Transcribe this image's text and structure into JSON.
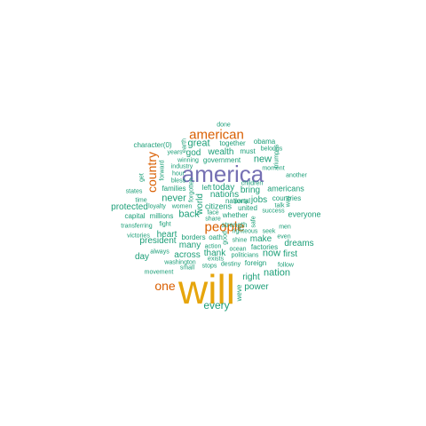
{
  "colors": {
    "teal": "#1b9e77",
    "orange": "#d95f02",
    "purple": "#7570b3",
    "gold": "#e6a50c",
    "background": "#ffffff"
  },
  "words": [
    {
      "text": "will",
      "tier": 1,
      "color": "gold"
    },
    {
      "text": "america",
      "tier": 2,
      "color": "purple"
    },
    {
      "text": "american",
      "tier": 3,
      "color": "orange"
    },
    {
      "text": "people",
      "tier": 3,
      "color": "orange"
    },
    {
      "text": "country",
      "tier": 3,
      "color": "orange"
    },
    {
      "text": "one",
      "tier": 3,
      "color": "orange"
    },
    {
      "text": "every",
      "tier": 4,
      "color": "teal"
    },
    {
      "text": "great",
      "tier": 4,
      "color": "teal"
    },
    {
      "text": "new",
      "tier": 4,
      "color": "teal"
    },
    {
      "text": "back",
      "tier": 4,
      "color": "teal"
    },
    {
      "text": "nation",
      "tier": 4,
      "color": "teal"
    },
    {
      "text": "never",
      "tier": 4,
      "color": "teal"
    },
    {
      "text": "world",
      "tier": 4,
      "color": "teal"
    },
    {
      "text": "now",
      "tier": 4,
      "color": "teal"
    },
    {
      "text": "nations",
      "tier": 4,
      "color": "teal"
    },
    {
      "text": "across",
      "tier": 5,
      "color": "teal"
    },
    {
      "text": "many",
      "tier": 5,
      "color": "teal"
    },
    {
      "text": "protected",
      "tier": 5,
      "color": "teal"
    },
    {
      "text": "president",
      "tier": 5,
      "color": "teal"
    },
    {
      "text": "right",
      "tier": 5,
      "color": "teal"
    },
    {
      "text": "power",
      "tier": 5,
      "color": "teal"
    },
    {
      "text": "make",
      "tier": 5,
      "color": "teal"
    },
    {
      "text": "dreams",
      "tier": 5,
      "color": "teal"
    },
    {
      "text": "jobs",
      "tier": 5,
      "color": "teal"
    },
    {
      "text": "first",
      "tier": 5,
      "color": "teal"
    },
    {
      "text": "heart",
      "tier": 5,
      "color": "teal"
    },
    {
      "text": "day",
      "tier": 5,
      "color": "teal"
    },
    {
      "text": "wealth",
      "tier": 5,
      "color": "teal"
    },
    {
      "text": "god",
      "tier": 5,
      "color": "teal"
    },
    {
      "text": "bring",
      "tier": 5,
      "color": "teal"
    },
    {
      "text": "today",
      "tier": 5,
      "color": "teal"
    },
    {
      "text": "thank",
      "tier": 5,
      "color": "teal"
    },
    {
      "text": "americans",
      "tier": 5,
      "color": "teal"
    },
    {
      "text": "everyone",
      "tier": 5,
      "color": "teal"
    },
    {
      "text": "citizens",
      "tier": 5,
      "color": "teal"
    },
    {
      "text": "together",
      "tier": 6,
      "color": "teal"
    },
    {
      "text": "obama",
      "tier": 6,
      "color": "teal"
    },
    {
      "text": "character(0)",
      "tier": 6,
      "color": "teal"
    },
    {
      "text": "must",
      "tier": 6,
      "color": "teal"
    },
    {
      "text": "government",
      "tier": 6,
      "color": "teal"
    },
    {
      "text": "families",
      "tier": 6,
      "color": "teal"
    },
    {
      "text": "left",
      "tier": 6,
      "color": "teal"
    },
    {
      "text": "united",
      "tier": 6,
      "color": "teal"
    },
    {
      "text": "millions",
      "tier": 6,
      "color": "teal"
    },
    {
      "text": "capital",
      "tier": 6,
      "color": "teal"
    },
    {
      "text": "whether",
      "tier": 6,
      "color": "teal"
    },
    {
      "text": "borders",
      "tier": 6,
      "color": "teal"
    },
    {
      "text": "factories",
      "tier": 6,
      "color": "teal"
    },
    {
      "text": "foreign",
      "tier": 6,
      "color": "teal"
    },
    {
      "text": "strength",
      "tier": 6,
      "color": "teal"
    },
    {
      "text": "countries",
      "tier": 6,
      "color": "teal"
    },
    {
      "text": "oath",
      "tier": 6,
      "color": "teal"
    },
    {
      "text": "national",
      "tier": 6,
      "color": "teal"
    },
    {
      "text": "years",
      "tier": 7,
      "color": "teal"
    },
    {
      "text": "winning",
      "tier": 7,
      "color": "teal"
    },
    {
      "text": "belongs",
      "tier": 7,
      "color": "teal"
    },
    {
      "text": "moment",
      "tier": 7,
      "color": "teal"
    },
    {
      "text": "children",
      "tier": 7,
      "color": "teal"
    },
    {
      "text": "industry",
      "tier": 7,
      "color": "teal"
    },
    {
      "text": "hour",
      "tier": 7,
      "color": "teal"
    },
    {
      "text": "bless",
      "tier": 7,
      "color": "teal"
    },
    {
      "text": "another",
      "tier": 7,
      "color": "teal"
    },
    {
      "text": "states",
      "tier": 7,
      "color": "teal"
    },
    {
      "text": "time",
      "tier": 7,
      "color": "teal"
    },
    {
      "text": "loyalty",
      "tier": 7,
      "color": "teal"
    },
    {
      "text": "women",
      "tier": 7,
      "color": "teal"
    },
    {
      "text": "face",
      "tier": 7,
      "color": "teal"
    },
    {
      "text": "share",
      "tier": 7,
      "color": "teal"
    },
    {
      "text": "party",
      "tier": 7,
      "color": "teal"
    },
    {
      "text": "talk",
      "tier": 7,
      "color": "teal"
    },
    {
      "text": "success",
      "tier": 7,
      "color": "teal"
    },
    {
      "text": "transferring",
      "tier": 7,
      "color": "teal"
    },
    {
      "text": "fight",
      "tier": 7,
      "color": "teal"
    },
    {
      "text": "victories",
      "tier": 7,
      "color": "teal"
    },
    {
      "text": "righteous",
      "tier": 7,
      "color": "teal"
    },
    {
      "text": "seek",
      "tier": 7,
      "color": "teal"
    },
    {
      "text": "men",
      "tier": 7,
      "color": "teal"
    },
    {
      "text": "shine",
      "tier": 7,
      "color": "teal"
    },
    {
      "text": "even",
      "tier": 7,
      "color": "teal"
    },
    {
      "text": "always",
      "tier": 7,
      "color": "teal"
    },
    {
      "text": "action",
      "tier": 7,
      "color": "teal"
    },
    {
      "text": "ocean",
      "tier": 7,
      "color": "teal"
    },
    {
      "text": "washington",
      "tier": 7,
      "color": "teal"
    },
    {
      "text": "exists",
      "tier": 7,
      "color": "teal"
    },
    {
      "text": "politicians",
      "tier": 7,
      "color": "teal"
    },
    {
      "text": "small",
      "tier": 7,
      "color": "teal"
    },
    {
      "text": "follow",
      "tier": 7,
      "color": "teal"
    },
    {
      "text": "movement",
      "tier": 7,
      "color": "teal"
    },
    {
      "text": "stops",
      "tier": 7,
      "color": "teal"
    },
    {
      "text": "destiny",
      "tier": 7,
      "color": "teal"
    },
    {
      "text": "done",
      "tier": 7,
      "color": "teal"
    },
    {
      "text": "earth",
      "tier": 7,
      "color": "teal"
    },
    {
      "text": "forward",
      "tier": 7,
      "color": "teal"
    },
    {
      "text": "get",
      "tier": 7,
      "color": "teal"
    },
    {
      "text": "forgotten",
      "tier": 7,
      "color": "teal"
    },
    {
      "text": "safe",
      "tier": 7,
      "color": "teal"
    },
    {
      "text": "way",
      "tier": 7,
      "color": "teal"
    },
    {
      "text": "triumphs",
      "tier": 7,
      "color": "teal"
    },
    {
      "text": "good",
      "tier": 7,
      "color": "teal"
    },
    {
      "text": "weve",
      "tier": 7,
      "color": "teal"
    }
  ]
}
